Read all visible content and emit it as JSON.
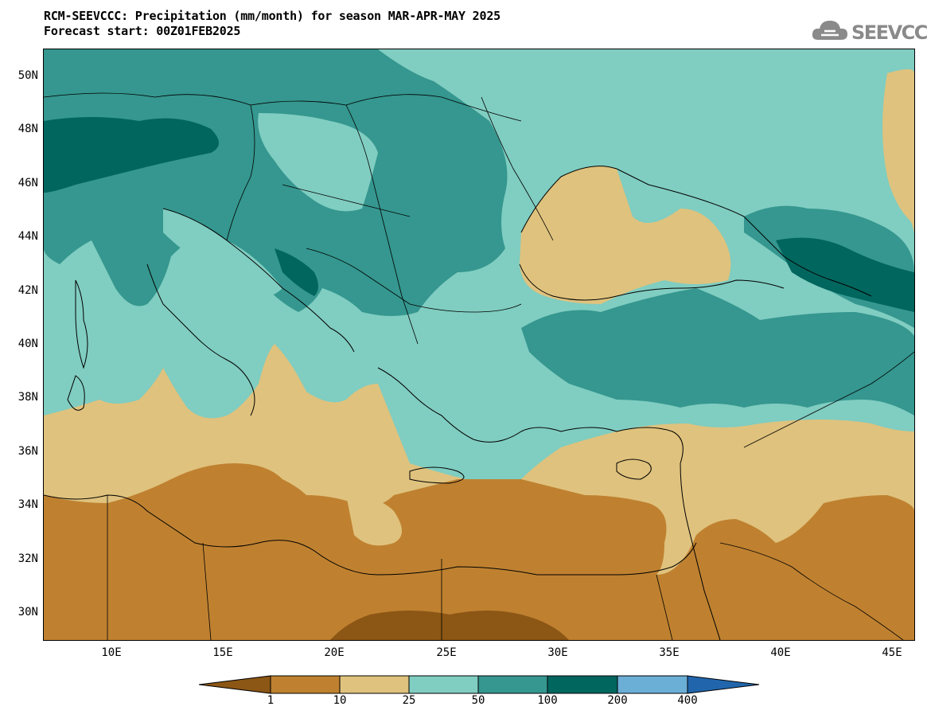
{
  "header": {
    "title_line1": "RCM-SEEVCCC: Precipitation (mm/month) for season MAR-APR-MAY 2025",
    "title_line2": "Forecast start: 00Z01FEB2025"
  },
  "logo": {
    "text": "SEEVCCC",
    "icon": "cloud-icon"
  },
  "map": {
    "lat_labels": [
      "50N",
      "48N",
      "46N",
      "44N",
      "42N",
      "40N",
      "38N",
      "36N",
      "34N",
      "32N",
      "30N"
    ],
    "lon_labels": [
      "10E",
      "15E",
      "20E",
      "25E",
      "30E",
      "35E",
      "40E",
      "45E"
    ],
    "lat_range": [
      29,
      51
    ],
    "lon_range": [
      7,
      46
    ]
  },
  "colorbar": {
    "labels": [
      "1",
      "10",
      "25",
      "50",
      "100",
      "200",
      "400"
    ],
    "colors": [
      "#8c5615",
      "#bf8130",
      "#dfc27d",
      "#80cdc1",
      "#35978f",
      "#01665e",
      "#6baed6",
      "#2166ac"
    ]
  }
}
